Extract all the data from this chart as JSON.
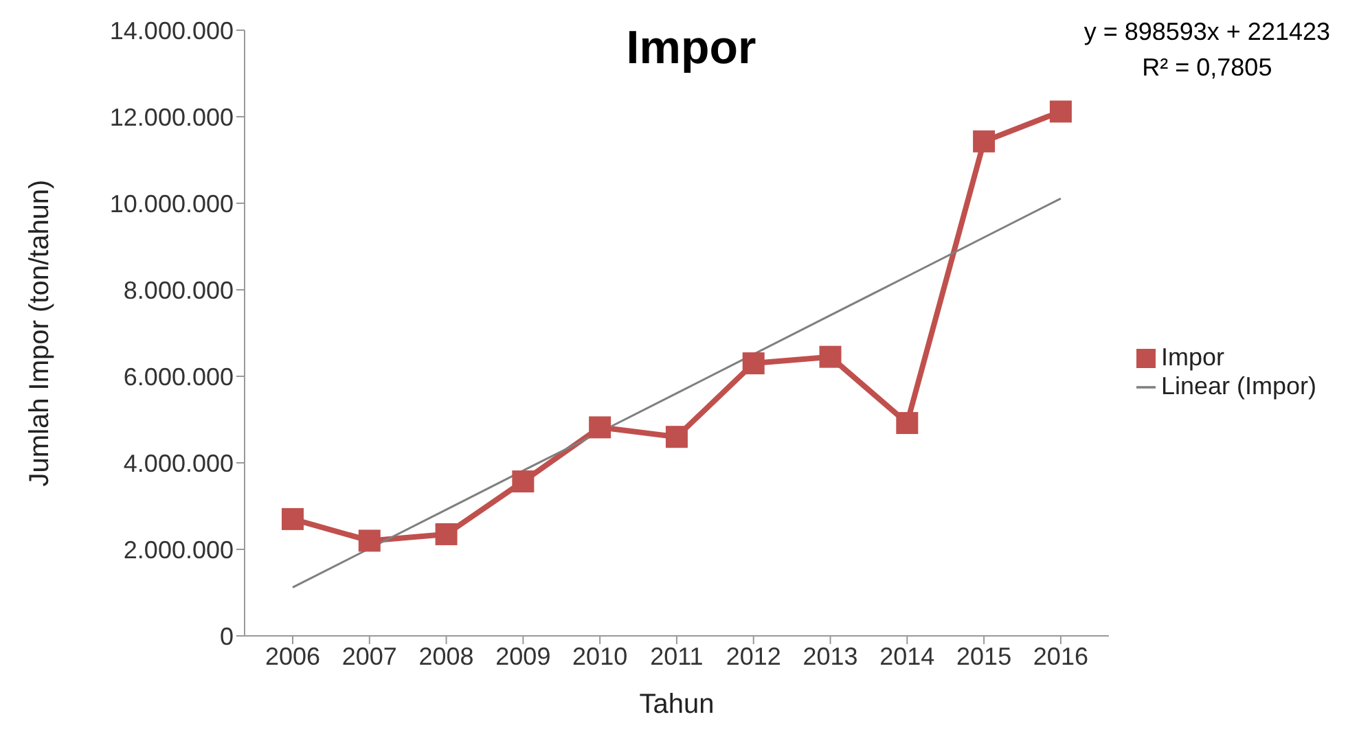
{
  "chart_data": {
    "type": "line",
    "title": "Impor",
    "xlabel": "Tahun",
    "ylabel": "Jumlah Impor (ton/tahun)",
    "categories": [
      "2006",
      "2007",
      "2008",
      "2009",
      "2010",
      "2011",
      "2012",
      "2013",
      "2014",
      "2015",
      "2016"
    ],
    "series": [
      {
        "name": "Impor",
        "color": "#c0504d",
        "marker": "square",
        "values": [
          2700000,
          2200000,
          2350000,
          3570000,
          4820000,
          4600000,
          6300000,
          6450000,
          4920000,
          11430000,
          12120000
        ]
      },
      {
        "name": "Linear (Impor)",
        "type": "line",
        "color": "#7f7f7f",
        "marker": "none",
        "values": [
          1120000,
          2020000,
          2920000,
          3820000,
          4710000,
          5610000,
          6510000,
          7410000,
          8310000,
          9210000,
          10110000
        ]
      }
    ],
    "ylim": [
      0,
      14000000
    ],
    "yticks": [
      0,
      {
        "value": 2000000,
        "label": "2.000.000"
      },
      {
        "value": 4000000,
        "label": "4.000.000"
      },
      {
        "value": 6000000,
        "label": "6.000.000"
      },
      {
        "value": 8000000,
        "label": "8.000.000"
      },
      {
        "value": 10000000,
        "label": "10.000.000"
      },
      {
        "value": 12000000,
        "label": "12.000.000"
      },
      {
        "value": 14000000,
        "label": "14.000.000"
      }
    ],
    "grid": false,
    "legend": "right",
    "annotations": [
      "y = 898593x + 221423",
      "R² = 0,7805"
    ]
  }
}
